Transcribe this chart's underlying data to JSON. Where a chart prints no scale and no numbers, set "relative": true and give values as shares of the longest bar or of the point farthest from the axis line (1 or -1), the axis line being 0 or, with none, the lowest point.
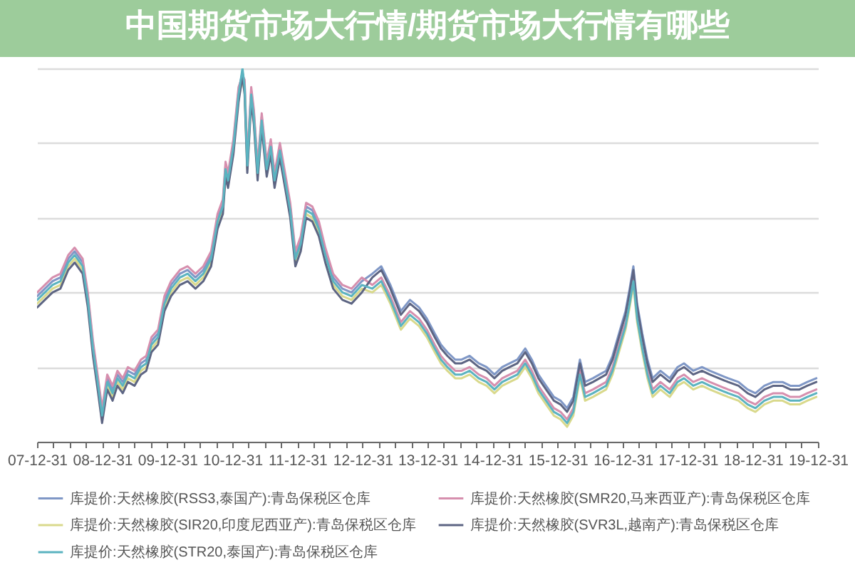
{
  "chart_data": {
    "type": "line",
    "title": "中国期货市场大行情/期货市场大行情有哪些",
    "relative": true,
    "legend": "bottom",
    "grid": "y",
    "xlim": [
      "2007-12-31",
      "2019-12-31"
    ],
    "xticks": [
      {
        "value": "2007-12-31",
        "label": "07-12-31"
      },
      {
        "value": "2008-03-31",
        "label": null
      },
      {
        "value": "2008-06-30",
        "label": null
      },
      {
        "value": "2008-09-30",
        "label": null
      },
      {
        "value": "2008-12-31",
        "label": "08-12-31"
      },
      {
        "value": "2009-03-31",
        "label": null
      },
      {
        "value": "2009-06-30",
        "label": null
      },
      {
        "value": "2009-09-30",
        "label": null
      },
      {
        "value": "2009-12-31",
        "label": "09-12-31"
      },
      {
        "value": "2010-03-31",
        "label": null
      },
      {
        "value": "2010-06-30",
        "label": null
      },
      {
        "value": "2010-09-30",
        "label": null
      },
      {
        "value": "2010-12-31",
        "label": "10-12-31"
      },
      {
        "value": "2011-03-31",
        "label": null
      },
      {
        "value": "2011-06-30",
        "label": null
      },
      {
        "value": "2011-09-30",
        "label": null
      },
      {
        "value": "2011-12-31",
        "label": "11-12-31"
      },
      {
        "value": "2012-03-31",
        "label": null
      },
      {
        "value": "2012-06-30",
        "label": null
      },
      {
        "value": "2012-09-30",
        "label": null
      },
      {
        "value": "2012-12-31",
        "label": "12-12-31"
      },
      {
        "value": "2013-03-31",
        "label": null
      },
      {
        "value": "2013-06-30",
        "label": null
      },
      {
        "value": "2013-09-30",
        "label": null
      },
      {
        "value": "2013-12-31",
        "label": "13-12-31"
      },
      {
        "value": "2014-03-31",
        "label": null
      },
      {
        "value": "2014-06-30",
        "label": null
      },
      {
        "value": "2014-09-30",
        "label": null
      },
      {
        "value": "2014-12-31",
        "label": "14-12-31"
      },
      {
        "value": "2015-03-31",
        "label": null
      },
      {
        "value": "2015-06-30",
        "label": null
      },
      {
        "value": "2015-09-30",
        "label": null
      },
      {
        "value": "2015-12-31",
        "label": "15-12-31"
      },
      {
        "value": "2016-03-31",
        "label": null
      },
      {
        "value": "2016-06-30",
        "label": null
      },
      {
        "value": "2016-09-30",
        "label": null
      },
      {
        "value": "2016-12-31",
        "label": "16-12-31"
      },
      {
        "value": "2017-03-31",
        "label": null
      },
      {
        "value": "2017-06-30",
        "label": null
      },
      {
        "value": "2017-09-30",
        "label": null
      },
      {
        "value": "2017-12-31",
        "label": "17-12-31"
      },
      {
        "value": "2018-03-31",
        "label": null
      },
      {
        "value": "2018-06-30",
        "label": null
      },
      {
        "value": "2018-09-30",
        "label": null
      },
      {
        "value": "2018-12-31",
        "label": "18-12-31"
      },
      {
        "value": "2019-03-31",
        "label": null
      },
      {
        "value": "2019-06-30",
        "label": null
      },
      {
        "value": "2019-09-30",
        "label": null
      },
      {
        "value": "2019-12-31",
        "label": "19-12-31"
      }
    ],
    "x": [
      "2008-01-01",
      "2008-02-13",
      "2008-03-27",
      "2008-05-10",
      "2008-06-23",
      "2008-07-29",
      "2008-09-12",
      "2008-10-11",
      "2008-11-09",
      "2008-12-08",
      "2008-12-30",
      "2009-01-28",
      "2009-02-27",
      "2009-03-26",
      "2009-04-25",
      "2009-05-24",
      "2009-06-30",
      "2009-08-05",
      "2009-09-04",
      "2009-10-03",
      "2009-11-09",
      "2009-12-15",
      "2010-01-21",
      "2010-03-12",
      "2010-04-24",
      "2010-06-07",
      "2010-07-21",
      "2010-09-03",
      "2010-10-09",
      "2010-11-08",
      "2010-11-23",
      "2010-12-07",
      "2011-01-06",
      "2011-02-04",
      "2011-02-26",
      "2011-03-10",
      "2011-03-25",
      "2011-04-16",
      "2011-05-01",
      "2011-05-22",
      "2011-06-14",
      "2011-07-12",
      "2011-08-04",
      "2011-08-25",
      "2011-09-24",
      "2011-10-16",
      "2011-11-21",
      "2011-12-20",
      "2012-01-19",
      "2012-02-18",
      "2012-03-24",
      "2012-04-30",
      "2012-06-05",
      "2012-07-19",
      "2012-09-09",
      "2012-10-30",
      "2012-12-27",
      "2013-02-24",
      "2013-04-15",
      "2013-06-05",
      "2013-08-03",
      "2013-09-23",
      "2013-11-13",
      "2013-12-27",
      "2014-02-09",
      "2014-03-16",
      "2014-04-21",
      "2014-06-04",
      "2014-07-10",
      "2014-08-24",
      "2014-10-14",
      "2014-11-27",
      "2015-01-10",
      "2015-02-23",
      "2015-04-06",
      "2015-05-19",
      "2015-07-02",
      "2015-08-08",
      "2015-09-14",
      "2015-10-27",
      "2015-12-10",
      "2016-01-16",
      "2016-02-22",
      "2016-03-28",
      "2016-05-04",
      "2016-06-02",
      "2016-07-16",
      "2016-08-22",
      "2016-09-28",
      "2016-11-03",
      "2016-12-09",
      "2017-01-15",
      "2017-02-07",
      "2017-02-28",
      "2017-03-21",
      "2017-04-19",
      "2017-05-18",
      "2017-06-16",
      "2017-07-30",
      "2017-09-20",
      "2017-11-03",
      "2017-12-09",
      "2018-01-30",
      "2018-03-20",
      "2018-05-03",
      "2018-06-23",
      "2018-08-14",
      "2018-10-11",
      "2018-12-01",
      "2019-01-14",
      "2019-03-05",
      "2019-04-25",
      "2019-06-15",
      "2019-07-29",
      "2019-09-18",
      "2019-11-01",
      "2019-12-22"
    ],
    "series": [
      {
        "name": "库提价:天然橡胶(RSS3,泰国产):青岛保税区仓库",
        "color": "#7f97c6",
        "values": [
          0.39,
          0.41,
          0.43,
          0.44,
          0.49,
          0.51,
          0.48,
          0.39,
          0.26,
          0.16,
          0.08,
          0.17,
          0.14,
          0.18,
          0.16,
          0.19,
          0.18,
          0.21,
          0.22,
          0.27,
          0.29,
          0.38,
          0.42,
          0.45,
          0.46,
          0.44,
          0.46,
          0.5,
          0.6,
          0.64,
          0.74,
          0.71,
          0.8,
          0.94,
          0.99,
          0.96,
          0.75,
          0.94,
          0.88,
          0.73,
          0.87,
          0.74,
          0.8,
          0.71,
          0.79,
          0.73,
          0.63,
          0.5,
          0.54,
          0.63,
          0.62,
          0.58,
          0.51,
          0.44,
          0.41,
          0.4,
          0.43,
          0.45,
          0.47,
          0.42,
          0.35,
          0.38,
          0.36,
          0.33,
          0.29,
          0.26,
          0.24,
          0.22,
          0.22,
          0.23,
          0.21,
          0.2,
          0.18,
          0.2,
          0.21,
          0.22,
          0.25,
          0.22,
          0.18,
          0.15,
          0.12,
          0.11,
          0.09,
          0.12,
          0.22,
          0.16,
          0.17,
          0.18,
          0.19,
          0.23,
          0.29,
          0.35,
          0.41,
          0.47,
          0.37,
          0.29,
          0.22,
          0.17,
          0.19,
          0.17,
          0.2,
          0.21,
          0.19,
          0.2,
          0.19,
          0.18,
          0.17,
          0.16,
          0.14,
          0.13,
          0.15,
          0.16,
          0.16,
          0.15,
          0.15,
          0.16,
          0.17
        ]
      },
      {
        "name": "库提价:天然橡胶(SMR20,马来西亚产):青岛保税区仓库",
        "color": "#d68fae",
        "values": [
          0.4,
          0.42,
          0.44,
          0.45,
          0.5,
          0.52,
          0.49,
          0.4,
          0.27,
          0.17,
          0.09,
          0.18,
          0.15,
          0.19,
          0.17,
          0.2,
          0.19,
          0.22,
          0.23,
          0.28,
          0.3,
          0.39,
          0.43,
          0.46,
          0.47,
          0.45,
          0.47,
          0.51,
          0.61,
          0.65,
          0.75,
          0.72,
          0.81,
          0.95,
          0.98,
          0.97,
          0.76,
          0.95,
          0.89,
          0.74,
          0.88,
          0.75,
          0.81,
          0.72,
          0.8,
          0.74,
          0.64,
          0.51,
          0.55,
          0.64,
          0.63,
          0.59,
          0.52,
          0.45,
          0.42,
          0.41,
          0.44,
          0.42,
          0.44,
          0.39,
          0.32,
          0.35,
          0.33,
          0.3,
          0.26,
          0.23,
          0.21,
          0.19,
          0.19,
          0.2,
          0.18,
          0.17,
          0.15,
          0.17,
          0.18,
          0.19,
          0.22,
          0.19,
          0.15,
          0.12,
          0.09,
          0.08,
          0.06,
          0.09,
          0.19,
          0.13,
          0.14,
          0.15,
          0.16,
          0.2,
          0.26,
          0.32,
          0.38,
          0.44,
          0.34,
          0.26,
          0.19,
          0.14,
          0.16,
          0.14,
          0.17,
          0.18,
          0.16,
          0.17,
          0.16,
          0.15,
          0.14,
          0.13,
          0.11,
          0.1,
          0.12,
          0.13,
          0.13,
          0.12,
          0.12,
          0.13,
          0.14
        ]
      },
      {
        "name": "库提价:天然橡胶(SIR20,印度尼西亚产):青岛保税区仓库",
        "color": "#d9d98c",
        "values": [
          0.37,
          0.39,
          0.41,
          0.42,
          0.47,
          0.49,
          0.46,
          0.37,
          0.24,
          0.14,
          0.06,
          0.15,
          0.12,
          0.16,
          0.14,
          0.17,
          0.16,
          0.19,
          0.2,
          0.25,
          0.27,
          0.36,
          0.4,
          0.43,
          0.44,
          0.42,
          0.44,
          0.48,
          0.58,
          0.62,
          0.72,
          0.69,
          0.78,
          0.92,
          0.97,
          0.94,
          0.73,
          0.92,
          0.86,
          0.71,
          0.85,
          0.72,
          0.78,
          0.69,
          0.77,
          0.71,
          0.61,
          0.48,
          0.52,
          0.61,
          0.6,
          0.56,
          0.49,
          0.42,
          0.39,
          0.38,
          0.41,
          0.4,
          0.42,
          0.37,
          0.3,
          0.33,
          0.31,
          0.28,
          0.24,
          0.21,
          0.19,
          0.17,
          0.17,
          0.18,
          0.16,
          0.15,
          0.13,
          0.15,
          0.16,
          0.17,
          0.2,
          0.17,
          0.13,
          0.1,
          0.07,
          0.06,
          0.04,
          0.07,
          0.17,
          0.11,
          0.12,
          0.13,
          0.14,
          0.18,
          0.24,
          0.3,
          0.36,
          0.42,
          0.32,
          0.24,
          0.17,
          0.12,
          0.14,
          0.12,
          0.15,
          0.16,
          0.14,
          0.15,
          0.14,
          0.13,
          0.12,
          0.11,
          0.09,
          0.08,
          0.1,
          0.11,
          0.11,
          0.1,
          0.1,
          0.11,
          0.12
        ]
      },
      {
        "name": "库提价:天然橡胶(SVR3L,越南产):青岛保税区仓库",
        "color": "#5d6583",
        "values": [
          0.36,
          0.38,
          0.4,
          0.41,
          0.46,
          0.48,
          0.45,
          0.36,
          0.23,
          0.13,
          0.05,
          0.14,
          0.11,
          0.15,
          0.13,
          0.16,
          0.15,
          0.18,
          0.19,
          0.24,
          0.26,
          0.35,
          0.39,
          0.42,
          0.43,
          0.41,
          0.43,
          0.47,
          0.57,
          0.61,
          0.71,
          0.68,
          0.77,
          0.91,
          0.98,
          0.93,
          0.72,
          0.91,
          0.85,
          0.7,
          0.84,
          0.71,
          0.77,
          0.68,
          0.76,
          0.7,
          0.6,
          0.47,
          0.51,
          0.6,
          0.59,
          0.55,
          0.48,
          0.41,
          0.38,
          0.37,
          0.4,
          0.44,
          0.46,
          0.41,
          0.34,
          0.37,
          0.35,
          0.32,
          0.28,
          0.25,
          0.23,
          0.21,
          0.21,
          0.22,
          0.2,
          0.19,
          0.17,
          0.19,
          0.2,
          0.21,
          0.24,
          0.21,
          0.17,
          0.14,
          0.11,
          0.1,
          0.08,
          0.11,
          0.21,
          0.15,
          0.16,
          0.17,
          0.18,
          0.22,
          0.28,
          0.34,
          0.4,
          0.46,
          0.36,
          0.28,
          0.21,
          0.16,
          0.18,
          0.16,
          0.19,
          0.2,
          0.18,
          0.19,
          0.18,
          0.17,
          0.16,
          0.15,
          0.13,
          0.12,
          0.14,
          0.15,
          0.15,
          0.14,
          0.14,
          0.15,
          0.16
        ]
      },
      {
        "name": "库提价:天然橡胶(STR20,泰国产):青岛保税区仓库",
        "color": "#5bb3c0",
        "values": [
          0.38,
          0.4,
          0.42,
          0.43,
          0.48,
          0.5,
          0.47,
          0.38,
          0.25,
          0.15,
          0.07,
          0.16,
          0.13,
          0.17,
          0.15,
          0.18,
          0.17,
          0.2,
          0.21,
          0.26,
          0.28,
          0.37,
          0.41,
          0.44,
          0.45,
          0.43,
          0.45,
          0.49,
          0.59,
          0.63,
          0.73,
          0.7,
          0.79,
          0.93,
          1,
          0.95,
          0.74,
          0.93,
          0.87,
          0.72,
          0.86,
          0.73,
          0.79,
          0.7,
          0.78,
          0.72,
          0.62,
          0.49,
          0.53,
          0.62,
          0.61,
          0.57,
          0.5,
          0.43,
          0.4,
          0.39,
          0.42,
          0.41,
          0.43,
          0.38,
          0.31,
          0.34,
          0.32,
          0.29,
          0.25,
          0.22,
          0.2,
          0.18,
          0.18,
          0.19,
          0.17,
          0.16,
          0.14,
          0.16,
          0.17,
          0.18,
          0.21,
          0.18,
          0.14,
          0.11,
          0.08,
          0.07,
          0.05,
          0.08,
          0.18,
          0.12,
          0.13,
          0.14,
          0.15,
          0.19,
          0.25,
          0.31,
          0.37,
          0.43,
          0.33,
          0.25,
          0.18,
          0.13,
          0.15,
          0.13,
          0.16,
          0.17,
          0.15,
          0.16,
          0.15,
          0.14,
          0.13,
          0.12,
          0.1,
          0.09,
          0.11,
          0.12,
          0.12,
          0.11,
          0.11,
          0.12,
          0.13
        ]
      }
    ]
  }
}
